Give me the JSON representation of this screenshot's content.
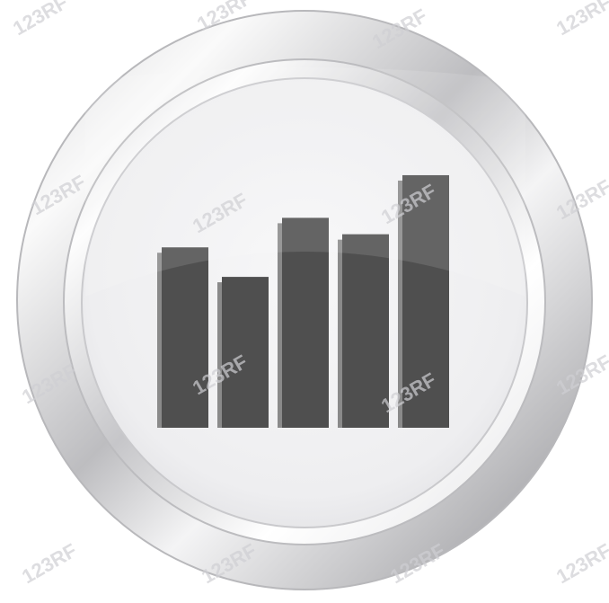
{
  "icon": {
    "name": "bar-chart-icon",
    "bar_levels": [
      0.55,
      0.46,
      0.64,
      0.59,
      0.77
    ],
    "bar_color": "#4f4f4f",
    "bar_shadow_color": "#8a8a8a",
    "face_color": "#f2f2f4",
    "rim_light": "#fbfbfb",
    "rim_dark": "#a9a9ab"
  },
  "watermark": {
    "text": "123RF",
    "color": "#cfcfd3"
  }
}
